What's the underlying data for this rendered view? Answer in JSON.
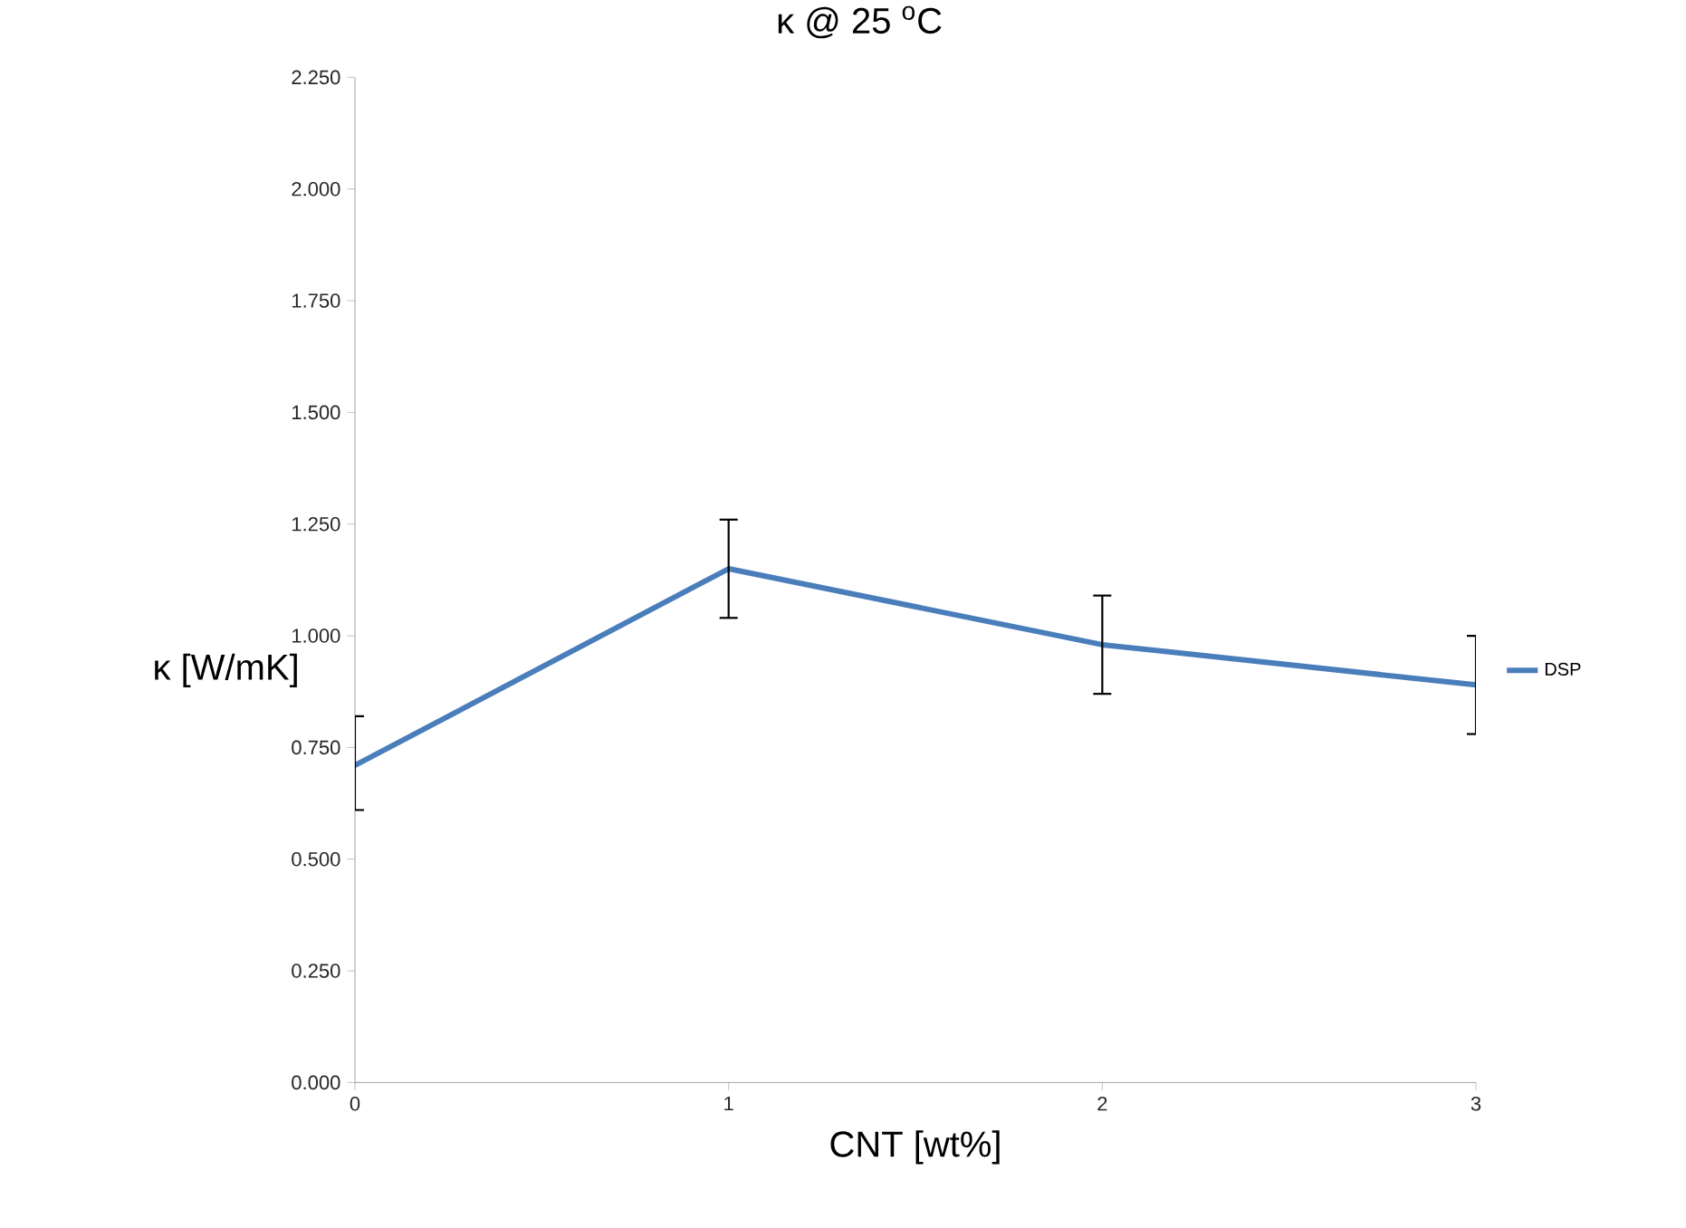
{
  "chart_data": {
    "type": "line",
    "title": "κ @ 25 $^{o}$C",
    "xlabel": "CNT [wt%]",
    "ylabel": "κ [W/mK]",
    "categories": [
      "0",
      "1",
      "2",
      "3"
    ],
    "series": [
      {
        "name": "DSP",
        "color": "#4a7ebb",
        "values": [
          0.71,
          1.15,
          0.98,
          0.89
        ],
        "errors": [
          [
            0.61,
            0.82
          ],
          [
            1.04,
            1.26
          ],
          [
            0.87,
            1.09
          ],
          [
            0.78,
            1.0
          ]
        ]
      }
    ],
    "ylim": [
      0,
      2.25
    ],
    "yticks": [
      {
        "value": 0,
        "label": "0.000"
      },
      {
        "value": 0.25,
        "label": "0.250"
      },
      {
        "value": 0.5,
        "label": "0.500"
      },
      {
        "value": 0.75,
        "label": "0.750"
      },
      {
        "value": 1.0,
        "label": "1.000"
      },
      {
        "value": 1.25,
        "label": "1.250"
      },
      {
        "value": 1.5,
        "label": "1.500"
      },
      {
        "value": 1.75,
        "label": "1.750"
      },
      {
        "value": 2.0,
        "label": "2.000"
      },
      {
        "value": 2.25,
        "label": "2.250"
      }
    ],
    "legend": "right",
    "marker": "none",
    "line_style": "solid",
    "grid": false
  }
}
